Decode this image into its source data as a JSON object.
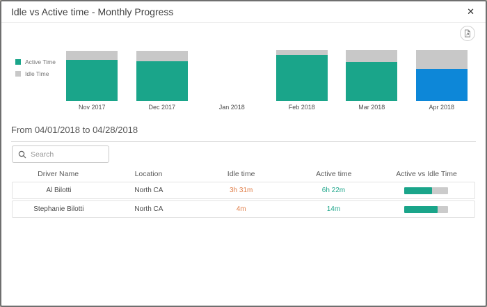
{
  "modal": {
    "title": "Idle vs Active time - Monthly Progress",
    "close_label": "✕"
  },
  "colors": {
    "active": "#1aa58a",
    "idle": "#c8c8c8",
    "highlight_active": "#0d87d8",
    "idle_text": "#e07c45",
    "active_text": "#1fa68b"
  },
  "chart_data": {
    "type": "bar",
    "stacked": true,
    "unit": "percent of month bar",
    "legend_position": "left",
    "categories": [
      "Nov 2017",
      "Dec 2017",
      "Jan 2018",
      "Feb 2018",
      "Mar 2018",
      "Apr 2018"
    ],
    "series": [
      {
        "name": "Active Time",
        "color": "#1aa58a",
        "values_pct": [
          81,
          77.5,
          0,
          90.5,
          77,
          63
        ]
      },
      {
        "name": "Idle Time",
        "color": "#c8c8c8",
        "values_pct": [
          18,
          21.5,
          0,
          9.5,
          23,
          37
        ]
      }
    ],
    "highlight": {
      "category": "Apr 2018",
      "active_color": "#0d87d8"
    }
  },
  "filter": {
    "range_label": "From 04/01/2018 to 04/28/2018"
  },
  "search": {
    "placeholder": "Search"
  },
  "table": {
    "columns": [
      "Driver Name",
      "Location",
      "Idle time",
      "Active time",
      "Active vs Idle Time"
    ],
    "rows": [
      {
        "driver": "Al Bilotti",
        "location": "North CA",
        "idle": "3h 31m",
        "active": "6h 22m",
        "active_pct": 64
      },
      {
        "driver": "Stephanie Bilotti",
        "location": "North CA",
        "idle": "4m",
        "active": "14m",
        "active_pct": 76
      }
    ]
  }
}
